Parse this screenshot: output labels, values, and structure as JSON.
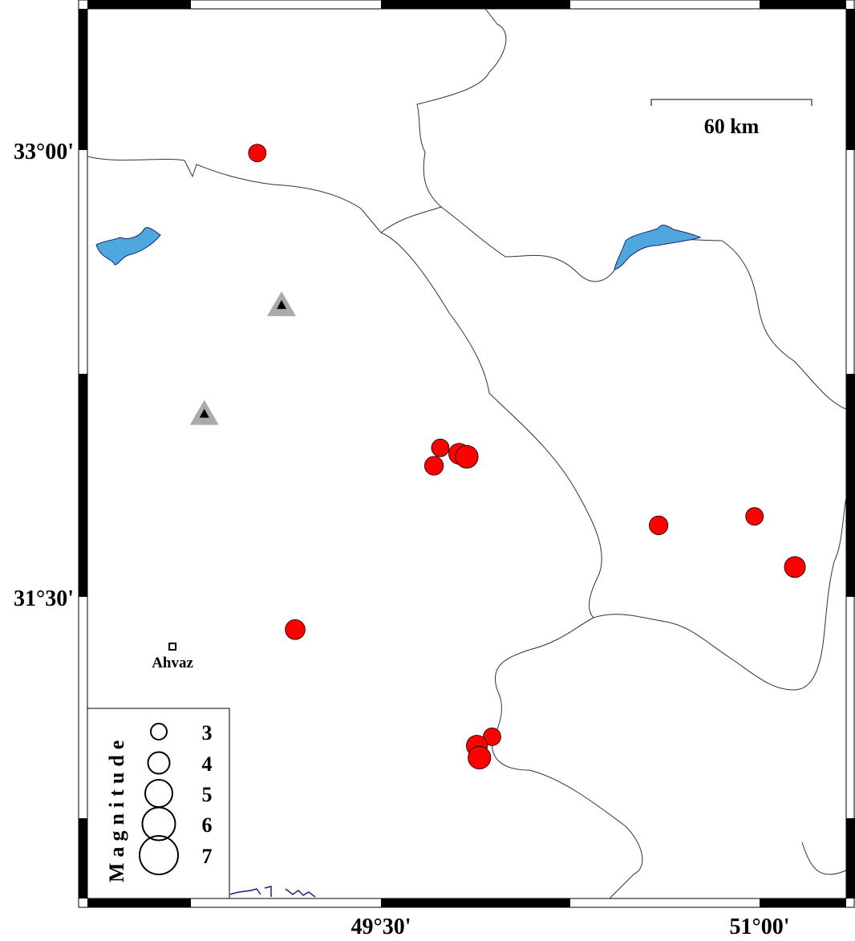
{
  "map": {
    "lon_range": [
      48.4,
      51.4
    ],
    "lat_range": [
      30.0,
      33.47
    ],
    "lat_ticks": [
      {
        "value": 33.0,
        "label": "33°00'"
      },
      {
        "value": 31.5,
        "label": "31°30'"
      }
    ],
    "lon_ticks": [
      {
        "value": 49.5,
        "label": "49°30'"
      },
      {
        "value": 51.0,
        "label": "51°00'"
      }
    ],
    "scale_bar": {
      "label": "60 km"
    },
    "colors": {
      "event": "#ff0000",
      "station": "#aaaaaa",
      "station_inner": "#000000",
      "lake": "#4fa8dd",
      "border": "#333333",
      "coast": "#1a237e"
    }
  },
  "city": {
    "name": "Ahvaz",
    "lon": 48.674,
    "lat": 31.333
  },
  "stations": [
    {
      "lon": 49.106,
      "lat": 32.48
    },
    {
      "lon": 48.8,
      "lat": 32.115
    }
  ],
  "events": [
    {
      "lon": 49.01,
      "lat": 32.99,
      "mag": 3.0
    },
    {
      "lon": 49.735,
      "lat": 32.0,
      "mag": 3.0
    },
    {
      "lon": 49.71,
      "lat": 31.94,
      "mag": 3.2
    },
    {
      "lon": 49.81,
      "lat": 31.98,
      "mag": 3.6
    },
    {
      "lon": 49.84,
      "lat": 31.97,
      "mag": 3.9
    },
    {
      "lon": 50.6,
      "lat": 31.74,
      "mag": 3.2
    },
    {
      "lon": 50.98,
      "lat": 31.77,
      "mag": 3.0
    },
    {
      "lon": 51.14,
      "lat": 31.6,
      "mag": 3.6
    },
    {
      "lon": 49.16,
      "lat": 31.39,
      "mag": 3.4
    },
    {
      "lon": 49.94,
      "lat": 31.03,
      "mag": 3.0
    },
    {
      "lon": 49.88,
      "lat": 31.0,
      "mag": 3.6
    },
    {
      "lon": 49.89,
      "lat": 30.96,
      "mag": 3.9
    }
  ],
  "legend": {
    "title": "Magnitude",
    "items": [
      {
        "mag": 3,
        "label": "3"
      },
      {
        "mag": 4,
        "label": "4"
      },
      {
        "mag": 5,
        "label": "5"
      },
      {
        "mag": 6,
        "label": "6"
      },
      {
        "mag": 7,
        "label": "7"
      }
    ]
  }
}
